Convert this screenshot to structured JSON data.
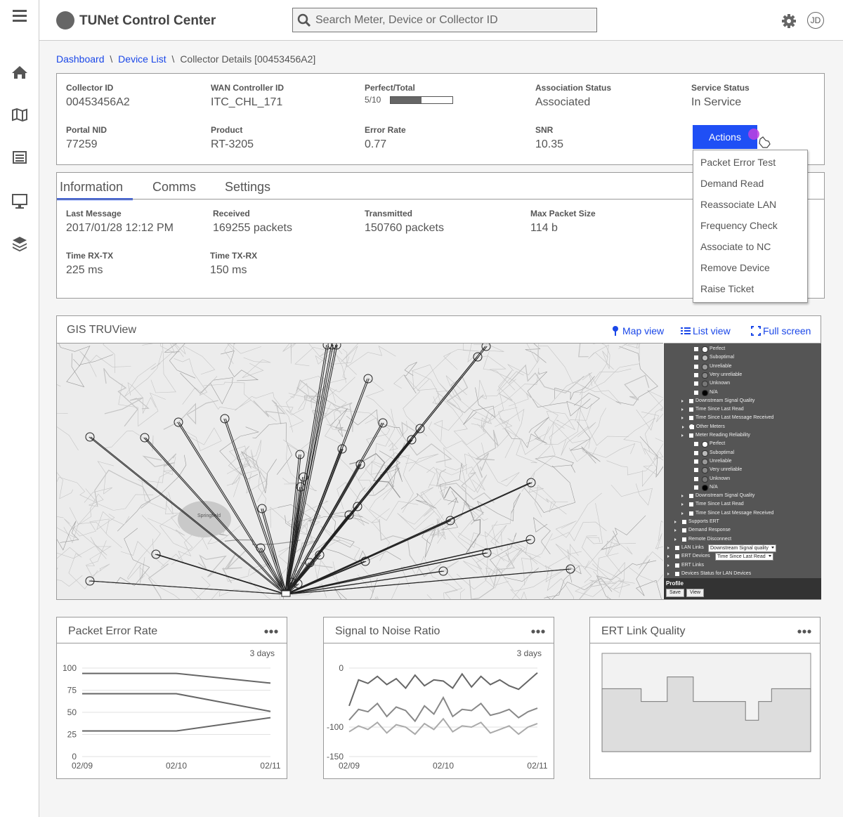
{
  "header": {
    "title": "TUNet Control Center",
    "search_placeholder": "Search Meter, Device or Collector ID",
    "user_initials": "JD"
  },
  "breadcrumb": [
    "Dashboard",
    "Device List",
    "Collector Details [00453456A2]"
  ],
  "collector": {
    "fields": [
      {
        "label": "Collector ID",
        "value": "00453456A2"
      },
      {
        "label": "WAN Controller ID",
        "value": "ITC_CHL_171"
      },
      {
        "label": "Perfect/Total",
        "value": "5/10",
        "perfect": 5,
        "total": 10
      },
      {
        "label": "Association Status",
        "value": "Associated"
      },
      {
        "label": "Service Status",
        "value": "In Service"
      },
      {
        "label": "Portal NID",
        "value": "77259"
      },
      {
        "label": "Product",
        "value": "RT-3205"
      },
      {
        "label": "Error Rate",
        "value": "0.77"
      },
      {
        "label": "SNR",
        "value": "10.35"
      }
    ]
  },
  "actions": {
    "button": "Actions",
    "menu": [
      "Packet Error Test",
      "Demand Read",
      "Reassociate LAN",
      "Frequency Check",
      "Associate to NC",
      "Remove Device",
      "Raise Ticket"
    ]
  },
  "tabs": {
    "items": [
      "Information",
      "Comms",
      "Settings"
    ],
    "active": 0
  },
  "information": {
    "fields": [
      {
        "label": "Last Message",
        "value": "2017/01/28 12:12 PM"
      },
      {
        "label": "Received",
        "value": "169255 packets"
      },
      {
        "label": "Transmitted",
        "value": "150760 packets"
      },
      {
        "label": "Max Packet Size",
        "value": "114 b"
      },
      {
        "label": "Time RX-TX",
        "value": "225 ms"
      },
      {
        "label": "Time TX-RX",
        "value": "150 ms"
      }
    ]
  },
  "gis": {
    "title": "GIS TRUView",
    "links": [
      "Map view",
      "List view",
      "Full screen"
    ],
    "map_labels": [
      "Springfield"
    ],
    "legend": [
      {
        "text": "Perfect"
      },
      {
        "text": "Suboptimal"
      },
      {
        "text": "Unreliable"
      },
      {
        "text": "Very unreliable"
      },
      {
        "text": "Unknown"
      },
      {
        "text": "N/A"
      },
      {
        "text": "Downstream Signal Quality"
      },
      {
        "text": "Time Since Last Read"
      },
      {
        "text": "Time Since Last Message Received"
      },
      {
        "text": "Other Meters"
      },
      {
        "text": "Meter Reading Reliability"
      },
      {
        "text": "Perfect"
      },
      {
        "text": "Suboptimal"
      },
      {
        "text": "Unreliable"
      },
      {
        "text": "Very unreliable"
      },
      {
        "text": "Unknown"
      },
      {
        "text": "N/A"
      },
      {
        "text": "Downstream Signal Quality"
      },
      {
        "text": "Time Since Last Read"
      },
      {
        "text": "Time Since Last Message Received"
      },
      {
        "text": "Supports ERT"
      },
      {
        "text": "Demand Response"
      },
      {
        "text": "Remote Disconnect"
      },
      {
        "text": "LAN Links",
        "dropdown": "Downstream Signal quality"
      },
      {
        "text": "ERT Devices",
        "dropdown": "Time Since Last Read"
      },
      {
        "text": "ERT Links"
      },
      {
        "text": "Devices Status for LAN Devices"
      }
    ],
    "profile": {
      "title": "Profile",
      "buttons": [
        "Save",
        "View"
      ]
    }
  },
  "charts": [
    {
      "type": "line",
      "title": "Packet Error Rate",
      "note": "3 days",
      "categories": [
        "02/09",
        "02/10",
        "02/11"
      ],
      "ylim": [
        0,
        100
      ],
      "yticks": [
        0,
        25,
        50,
        75,
        100
      ],
      "series": [
        {
          "color": "#666666",
          "values": [
            94,
            94,
            83
          ]
        },
        {
          "color": "#666666",
          "values": [
            71,
            71,
            51
          ]
        },
        {
          "color": "#666666",
          "values": [
            29,
            29,
            44
          ]
        }
      ]
    },
    {
      "type": "line",
      "title": "Signal to Noise Ratio",
      "note": "3 days",
      "categories": [
        "02/09",
        null,
        null,
        null,
        null,
        null,
        null,
        null,
        null,
        null,
        "02/10",
        null,
        null,
        null,
        null,
        null,
        null,
        null,
        null,
        null,
        "02/11"
      ],
      "ylim": [
        -150,
        0
      ],
      "yticks": [
        0,
        -100,
        -150
      ],
      "series": [
        {
          "color": "#666666",
          "values": [
            -64,
            -20,
            -26,
            -14,
            -28,
            -18,
            -34,
            -12,
            -30,
            -20,
            -22,
            -34,
            -10,
            -32,
            -14,
            -28,
            -20,
            -30,
            -36,
            -22,
            -8
          ]
        },
        {
          "color": "#888888",
          "values": [
            -88,
            -70,
            -74,
            -60,
            -82,
            -66,
            -72,
            -90,
            -64,
            -78,
            -50,
            -82,
            -70,
            -72,
            -60,
            -80,
            -76,
            -70,
            -84,
            -74,
            -68
          ]
        },
        {
          "color": "#aaaaaa",
          "values": [
            -108,
            -98,
            -104,
            -92,
            -110,
            -96,
            -100,
            -112,
            -94,
            -104,
            -86,
            -108,
            -98,
            -100,
            -92,
            -110,
            -104,
            -98,
            -112,
            -100,
            -94
          ]
        }
      ]
    },
    {
      "type": "area",
      "title": "ERT Link Quality",
      "ylim": [
        0,
        100
      ],
      "color": "#dddddd",
      "values": [
        64,
        64,
        64,
        51,
        51,
        76,
        76,
        51,
        51,
        51,
        51,
        32,
        51,
        64,
        64,
        64
      ]
    }
  ]
}
